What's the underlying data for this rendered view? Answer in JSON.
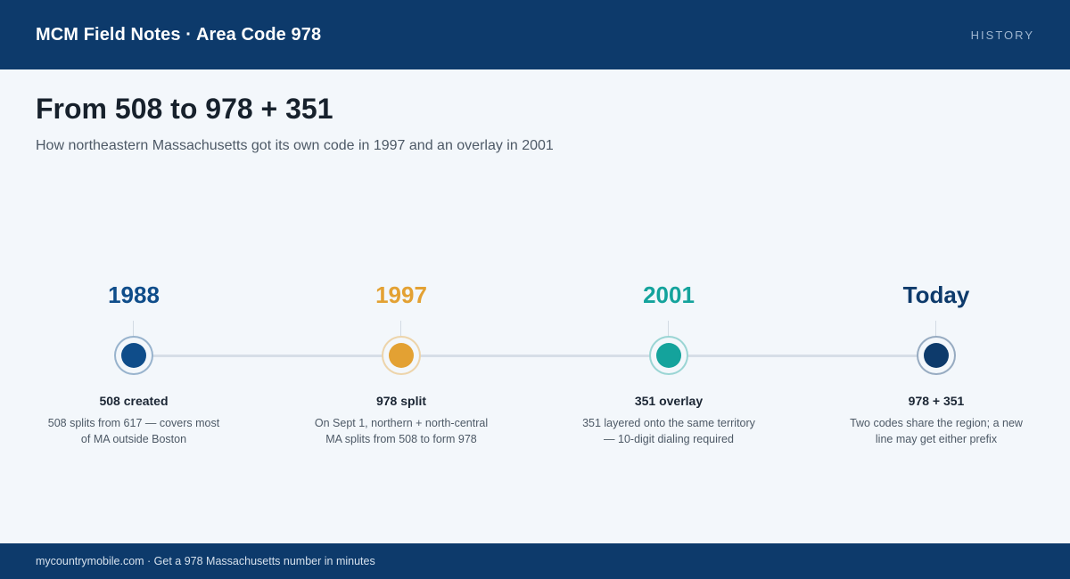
{
  "header": {
    "brand": "MCM Field Notes · Area Code 978",
    "section": "HISTORY"
  },
  "main": {
    "title": "From 508 to 978 + 351",
    "subtitle": "How northeastern Massachusetts got its own code in 1997 and an overlay in 2001"
  },
  "timeline": {
    "milestones": [
      {
        "year": "1988",
        "label": "508 created",
        "description": "508 splits from 617 — covers most of MA outside Boston",
        "color": "#0f4d8a"
      },
      {
        "year": "1997",
        "label": "978 split",
        "description": "On Sept 1, northern + north-central MA splits from 508 to form 978",
        "color": "#e3a133"
      },
      {
        "year": "2001",
        "label": "351 overlay",
        "description": "351 layered onto the same territory — 10-digit dialing required",
        "color": "#14a39c"
      },
      {
        "year": "Today",
        "label": "978 + 351",
        "description": "Two codes share the region; a new line may get either prefix",
        "color": "#0d3a6b"
      }
    ]
  },
  "footer": {
    "text": "mycountrymobile.com · Get a 978 Massachusetts number in minutes"
  }
}
